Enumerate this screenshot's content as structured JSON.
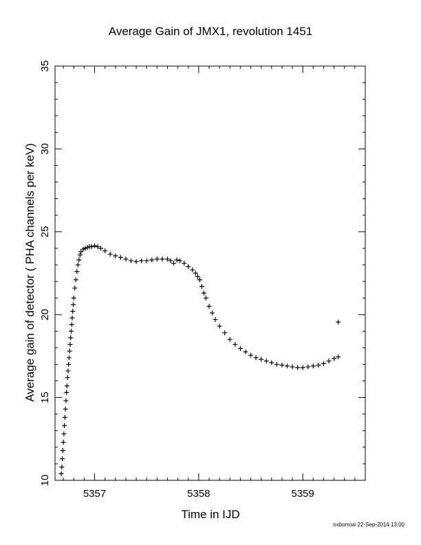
{
  "chart_data": {
    "type": "scatter",
    "title": "Average Gain of JMX1, revolution 1451",
    "xlabel": "Time in IJD",
    "ylabel": "Average gain of detector ( PHA channels per keV)",
    "xlim": [
      5356.62,
      5359.6
    ],
    "ylim": [
      10,
      35
    ],
    "xticks": [
      5357,
      5358,
      5359
    ],
    "yticks": [
      10,
      15,
      20,
      25,
      30,
      35
    ],
    "marker": "plus",
    "grid": false,
    "points": [
      [
        5356.68,
        10.4
      ],
      [
        5356.685,
        10.8
      ],
      [
        5356.69,
        11.3
      ],
      [
        5356.695,
        11.8
      ],
      [
        5356.7,
        12.3
      ],
      [
        5356.705,
        12.8
      ],
      [
        5356.71,
        13.3
      ],
      [
        5356.715,
        13.8
      ],
      [
        5356.72,
        14.3
      ],
      [
        5356.725,
        14.8
      ],
      [
        5356.73,
        15.3
      ],
      [
        5356.735,
        15.7
      ],
      [
        5356.74,
        16.2
      ],
      [
        5356.745,
        16.6
      ],
      [
        5356.75,
        17.0
      ],
      [
        5356.755,
        17.4
      ],
      [
        5356.76,
        17.8
      ],
      [
        5356.765,
        18.2
      ],
      [
        5356.77,
        18.6
      ],
      [
        5356.775,
        19.0
      ],
      [
        5356.78,
        19.4
      ],
      [
        5356.785,
        19.8
      ],
      [
        5356.79,
        20.2
      ],
      [
        5356.795,
        20.6
      ],
      [
        5356.8,
        21.0
      ],
      [
        5356.81,
        21.6
      ],
      [
        5356.82,
        22.1
      ],
      [
        5356.83,
        22.6
      ],
      [
        5356.84,
        23.0
      ],
      [
        5356.85,
        23.3
      ],
      [
        5356.86,
        23.6
      ],
      [
        5356.87,
        23.8
      ],
      [
        5356.89,
        23.95
      ],
      [
        5356.91,
        24.0
      ],
      [
        5356.93,
        24.05
      ],
      [
        5356.95,
        24.1
      ],
      [
        5356.97,
        24.1
      ],
      [
        5357.0,
        24.15
      ],
      [
        5357.03,
        24.1
      ],
      [
        5357.06,
        24.0
      ],
      [
        5357.1,
        23.85
      ],
      [
        5357.15,
        23.65
      ],
      [
        5357.2,
        23.55
      ],
      [
        5357.25,
        23.45
      ],
      [
        5357.3,
        23.35
      ],
      [
        5357.35,
        23.25
      ],
      [
        5357.4,
        23.2
      ],
      [
        5357.45,
        23.25
      ],
      [
        5357.5,
        23.25
      ],
      [
        5357.55,
        23.3
      ],
      [
        5357.6,
        23.35
      ],
      [
        5357.65,
        23.35
      ],
      [
        5357.7,
        23.35
      ],
      [
        5357.73,
        23.25
      ],
      [
        5357.76,
        23.1
      ],
      [
        5357.79,
        23.3
      ],
      [
        5357.82,
        23.25
      ],
      [
        5357.86,
        23.1
      ],
      [
        5357.9,
        22.9
      ],
      [
        5357.94,
        22.7
      ],
      [
        5357.97,
        22.5
      ],
      [
        5357.99,
        22.3
      ],
      [
        5358.01,
        22.1
      ],
      [
        5358.03,
        21.7
      ],
      [
        5358.05,
        21.3
      ],
      [
        5358.07,
        21.0
      ],
      [
        5358.1,
        20.5
      ],
      [
        5358.13,
        20.1
      ],
      [
        5358.16,
        19.7
      ],
      [
        5358.2,
        19.3
      ],
      [
        5358.25,
        18.9
      ],
      [
        5358.3,
        18.5
      ],
      [
        5358.35,
        18.2
      ],
      [
        5358.4,
        17.95
      ],
      [
        5358.45,
        17.75
      ],
      [
        5358.5,
        17.55
      ],
      [
        5358.55,
        17.4
      ],
      [
        5358.6,
        17.3
      ],
      [
        5358.65,
        17.2
      ],
      [
        5358.7,
        17.1
      ],
      [
        5358.75,
        17.0
      ],
      [
        5358.8,
        16.95
      ],
      [
        5358.85,
        16.9
      ],
      [
        5358.9,
        16.85
      ],
      [
        5358.95,
        16.8
      ],
      [
        5359.0,
        16.8
      ],
      [
        5359.05,
        16.85
      ],
      [
        5359.1,
        16.9
      ],
      [
        5359.15,
        16.95
      ],
      [
        5359.2,
        17.05
      ],
      [
        5359.25,
        17.2
      ],
      [
        5359.3,
        17.35
      ],
      [
        5359.34,
        17.45
      ],
      [
        5359.34,
        19.55
      ]
    ]
  },
  "footer": "oxborrow 22-Sep-2014 13:00"
}
